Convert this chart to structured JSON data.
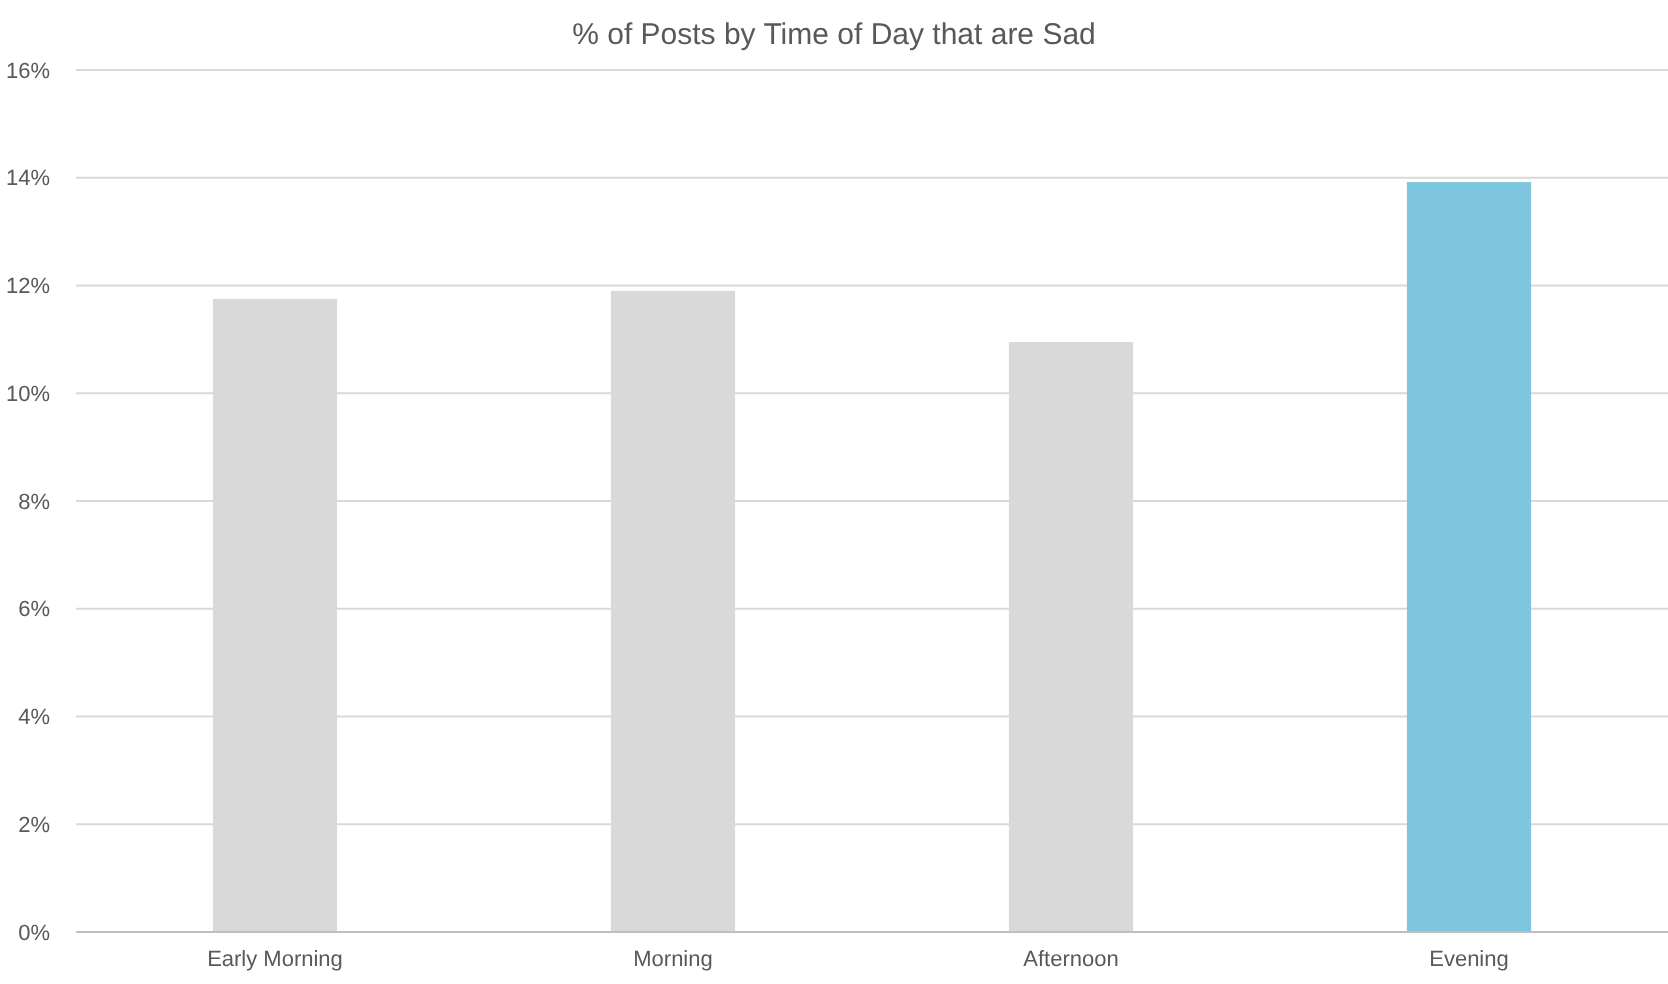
{
  "chart_data": {
    "type": "bar",
    "title": "% of Posts by Time of Day that are Sad",
    "categories": [
      "Early Morning",
      "Morning",
      "Afternoon",
      "Evening"
    ],
    "values": [
      11.75,
      11.9,
      10.95,
      13.92
    ],
    "colors": [
      "#d9d9d9",
      "#d9d9d9",
      "#d9d9d9",
      "#7ec6df"
    ],
    "ylim": [
      0,
      16
    ],
    "yticks": [
      {
        "value": 0,
        "label": "0%"
      },
      {
        "value": 2,
        "label": "2%"
      },
      {
        "value": 4,
        "label": "4%"
      },
      {
        "value": 6,
        "label": "6%"
      },
      {
        "value": 8,
        "label": "8%"
      },
      {
        "value": 10,
        "label": "10%"
      },
      {
        "value": 12,
        "label": "12%"
      },
      {
        "value": 14,
        "label": "14%"
      },
      {
        "value": 16,
        "label": "16%"
      }
    ],
    "grid": "y"
  }
}
